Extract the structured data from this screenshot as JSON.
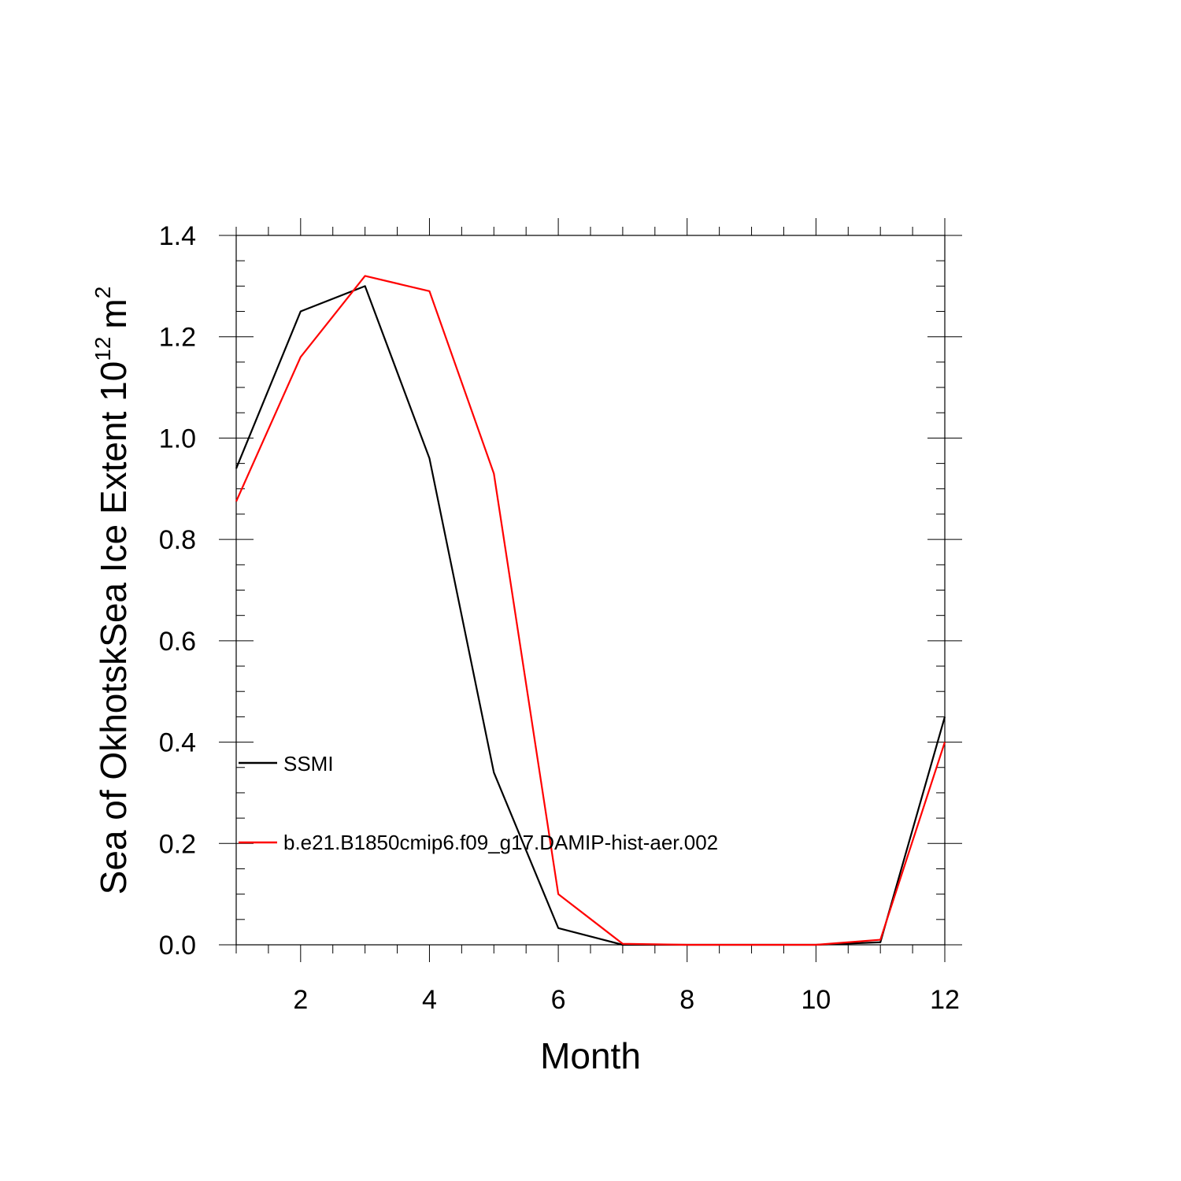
{
  "chart_data": {
    "type": "line",
    "xlabel": "Month",
    "ylabel": "Sea of OkhotskSea Ice Extent 10",
    "ylabel_superscript": "12",
    "ylabel_unit": "m",
    "ylabel_unit_superscript": "2",
    "xlim": [
      1,
      12
    ],
    "ylim": [
      0,
      1.4
    ],
    "x_ticks": [
      2,
      4,
      6,
      8,
      10,
      12
    ],
    "y_ticks": [
      "0.0",
      "0.2",
      "0.4",
      "0.6",
      "0.8",
      "1.0",
      "1.2",
      "1.4"
    ],
    "grid": false,
    "legend_position": "lower-left inside",
    "x": [
      1,
      2,
      3,
      4,
      5,
      6,
      7,
      8,
      9,
      10,
      11,
      12
    ],
    "series": [
      {
        "name": "SSMI",
        "color": "#000000",
        "values": [
          0.94,
          1.25,
          1.3,
          0.96,
          0.34,
          0.033,
          0.0,
          0.0,
          0.0,
          0.0,
          0.005,
          0.45
        ]
      },
      {
        "name": "b.e21.B1850cmip6.f09_g17.DAMIP-hist-aer.002",
        "color": "#ff0000",
        "values": [
          0.875,
          1.16,
          1.32,
          1.29,
          0.93,
          0.1,
          0.002,
          0.0,
          0.0,
          0.0,
          0.01,
          0.4
        ]
      }
    ]
  }
}
